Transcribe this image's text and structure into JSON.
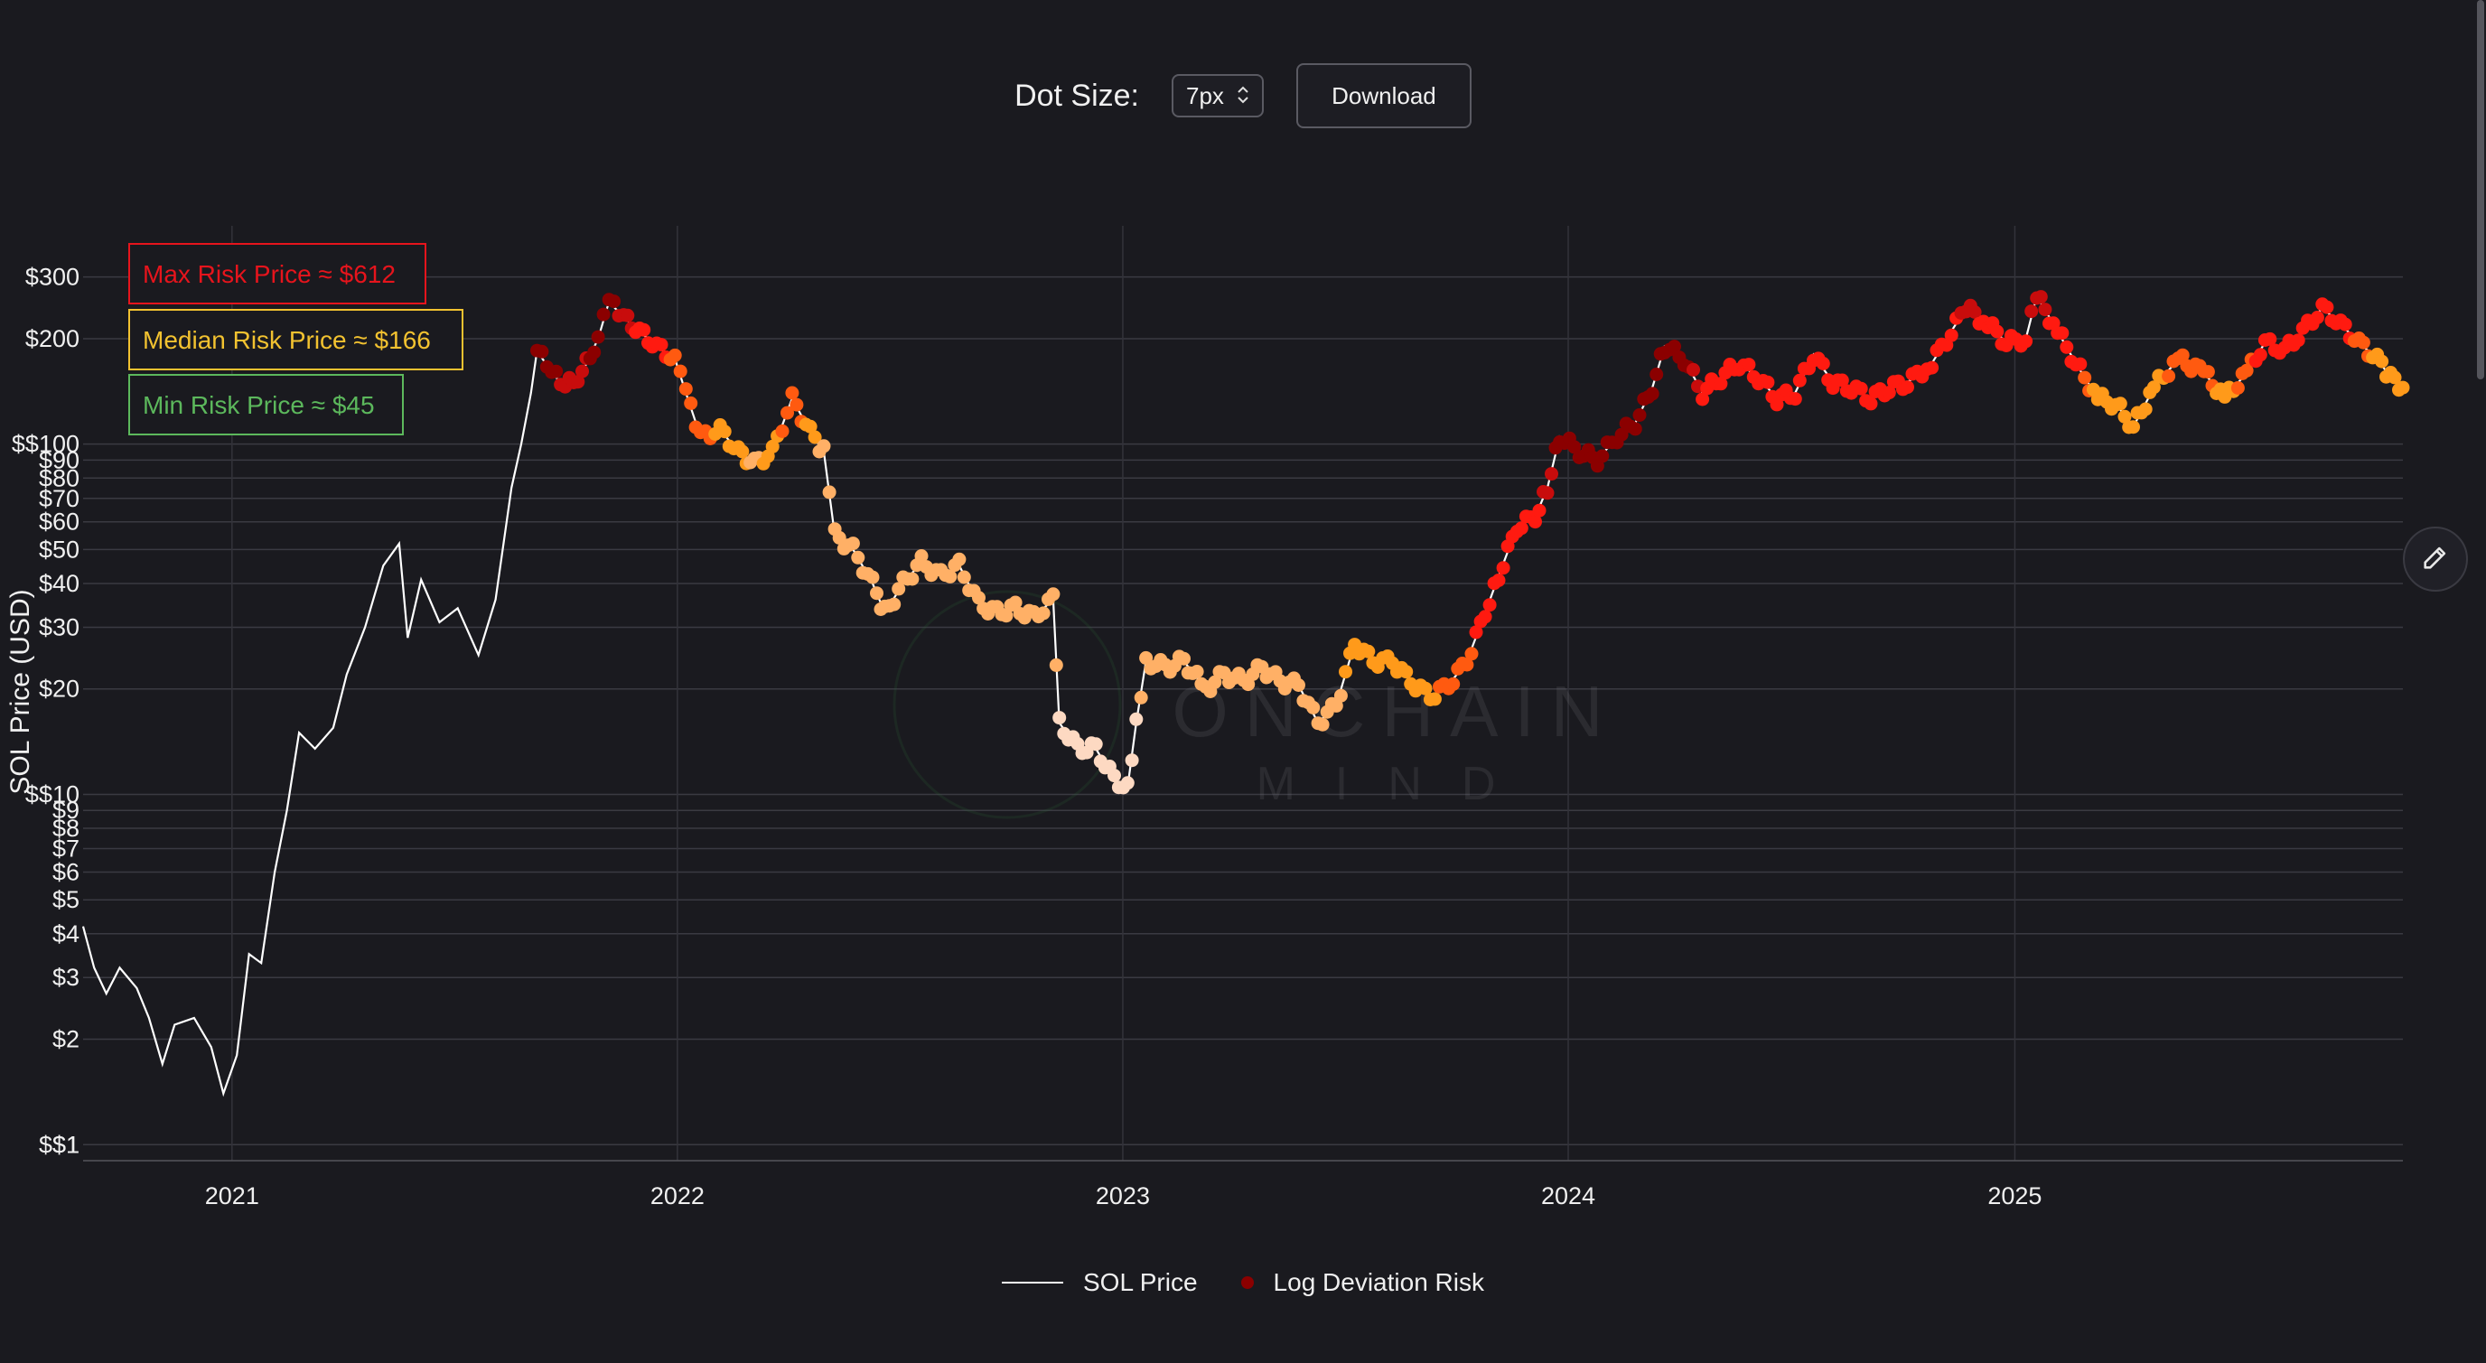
{
  "controls": {
    "dot_size_label": "Dot Size:",
    "dot_size_value": "7px",
    "download_label": "Download"
  },
  "icons": {
    "select": "chevron-updown-icon",
    "edit": "pencil-icon"
  },
  "colors": {
    "background": "#1a1a1f",
    "price_line": "#ffffff",
    "max_risk": "#e6141c",
    "median_risk": "#f2c230",
    "min_risk": "#5cb85c",
    "risk_scale": [
      "#fdd9c2",
      "#ffb066",
      "#ff9a1a",
      "#ff5a10",
      "#ff1a10",
      "#c80c0c",
      "#8b0000"
    ]
  },
  "watermark": {
    "line1": "ONCHAIN",
    "line2": "MIND"
  },
  "chart_data": {
    "type": "scatter",
    "title": "",
    "xlabel": "",
    "ylabel": "SOL Price (USD)",
    "y_scale": "log",
    "x_range": [
      "2020-09-01",
      "2025-11-15"
    ],
    "ylim": [
      0.9,
      420
    ],
    "grid": true,
    "x_tick_labels": [
      "2021",
      "2022",
      "2023",
      "2024",
      "2025"
    ],
    "y_tick_labels": [
      "$1",
      "$$1",
      "$2",
      "$3",
      "$4",
      "$5",
      "$6",
      "$7",
      "$8",
      "$9",
      "$$10",
      "$20",
      "$30",
      "$40",
      "$50",
      "$60",
      "$70",
      "$80",
      "$90",
      "$$100",
      "$200",
      "$300"
    ],
    "annotations": [
      {
        "text": "Max Risk Price ≈ $612",
        "color": "#e6141c"
      },
      {
        "text": "Median Risk Price ≈ $166",
        "color": "#f2c230"
      },
      {
        "text": "Min Risk Price ≈ $45",
        "color": "#5cb85c"
      }
    ],
    "legend": {
      "position": "bottom-center",
      "entries": [
        {
          "label": "SOL Price",
          "style": "line"
        },
        {
          "label": "Log Deviation Risk",
          "style": "dot"
        }
      ]
    },
    "series": [
      {
        "name": "SOL Price",
        "style": "line",
        "points": [
          [
            "2020-09-01",
            4.2
          ],
          [
            "2020-09-10",
            3.2
          ],
          [
            "2020-09-20",
            2.7
          ],
          [
            "2020-10-01",
            3.2
          ],
          [
            "2020-10-15",
            2.8
          ],
          [
            "2020-10-25",
            2.3
          ],
          [
            "2020-11-05",
            1.7
          ],
          [
            "2020-11-15",
            2.2
          ],
          [
            "2020-12-01",
            2.3
          ],
          [
            "2020-12-15",
            1.9
          ],
          [
            "2020-12-25",
            1.4
          ],
          [
            "2021-01-05",
            1.8
          ],
          [
            "2021-01-15",
            3.5
          ],
          [
            "2021-01-25",
            3.3
          ],
          [
            "2021-02-05",
            6.0
          ],
          [
            "2021-02-15",
            9.0
          ],
          [
            "2021-02-25",
            15.0
          ],
          [
            "2021-03-10",
            13.5
          ],
          [
            "2021-03-25",
            15.5
          ],
          [
            "2021-04-05",
            22.0
          ],
          [
            "2021-04-20",
            30.0
          ],
          [
            "2021-05-05",
            45.0
          ],
          [
            "2021-05-18",
            52.0
          ],
          [
            "2021-05-25",
            28.0
          ],
          [
            "2021-06-05",
            41.0
          ],
          [
            "2021-06-20",
            31.0
          ],
          [
            "2021-07-05",
            34.0
          ],
          [
            "2021-07-22",
            25.0
          ],
          [
            "2021-08-05",
            36.0
          ],
          [
            "2021-08-18",
            75.0
          ],
          [
            "2021-08-26",
            100.0
          ],
          [
            "2021-09-03",
            140.0
          ],
          [
            "2021-09-08",
            185.0
          ]
        ]
      },
      {
        "name": "Log Deviation Risk",
        "style": "dots",
        "points": [
          [
            "2021-09-08",
            185,
            6
          ],
          [
            "2021-09-20",
            160,
            6
          ],
          [
            "2021-10-01",
            145,
            5
          ],
          [
            "2021-10-15",
            160,
            5
          ],
          [
            "2021-10-28",
            200,
            6
          ],
          [
            "2021-11-06",
            255,
            6
          ],
          [
            "2021-11-18",
            230,
            5
          ],
          [
            "2021-12-01",
            210,
            4
          ],
          [
            "2021-12-15",
            190,
            4
          ],
          [
            "2021-12-30",
            175,
            3
          ],
          [
            "2022-01-08",
            140,
            3
          ],
          [
            "2022-01-20",
            105,
            3
          ],
          [
            "2022-02-05",
            110,
            2
          ],
          [
            "2022-02-20",
            95,
            2
          ],
          [
            "2022-03-05",
            88,
            1
          ],
          [
            "2022-03-20",
            95,
            2
          ],
          [
            "2022-04-05",
            135,
            3
          ],
          [
            "2022-04-20",
            108,
            2
          ],
          [
            "2022-05-01",
            95,
            1
          ],
          [
            "2022-05-10",
            55,
            1
          ],
          [
            "2022-05-25",
            50,
            1
          ],
          [
            "2022-06-10",
            40,
            1
          ],
          [
            "2022-06-20",
            33,
            1
          ],
          [
            "2022-07-05",
            40,
            1
          ],
          [
            "2022-07-20",
            46,
            1
          ],
          [
            "2022-08-05",
            42,
            1
          ],
          [
            "2022-08-20",
            45,
            1
          ],
          [
            "2022-09-05",
            35,
            1
          ],
          [
            "2022-09-20",
            33,
            1
          ],
          [
            "2022-10-05",
            34,
            1
          ],
          [
            "2022-10-20",
            32,
            1
          ],
          [
            "2022-11-05",
            36,
            1
          ],
          [
            "2022-11-10",
            16,
            0
          ],
          [
            "2022-11-25",
            13.5,
            0
          ],
          [
            "2022-12-10",
            13.5,
            0
          ],
          [
            "2022-12-25",
            11,
            0
          ],
          [
            "2023-01-05",
            10.5,
            0
          ],
          [
            "2023-01-12",
            16,
            0
          ],
          [
            "2023-01-20",
            24,
            1
          ],
          [
            "2023-02-05",
            23,
            1
          ],
          [
            "2023-02-20",
            24,
            1
          ],
          [
            "2023-03-10",
            20,
            1
          ],
          [
            "2023-03-25",
            22,
            1
          ],
          [
            "2023-04-10",
            21,
            1
          ],
          [
            "2023-04-25",
            23,
            1
          ],
          [
            "2023-05-10",
            21,
            1
          ],
          [
            "2023-05-25",
            20.5,
            1
          ],
          [
            "2023-06-10",
            16,
            1
          ],
          [
            "2023-06-25",
            18,
            1
          ],
          [
            "2023-07-10",
            27,
            2
          ],
          [
            "2023-07-25",
            24,
            2
          ],
          [
            "2023-08-10",
            24,
            2
          ],
          [
            "2023-08-25",
            21,
            2
          ],
          [
            "2023-09-10",
            19,
            2
          ],
          [
            "2023-09-25",
            20.5,
            3
          ],
          [
            "2023-10-10",
            24,
            3
          ],
          [
            "2023-10-25",
            33,
            4
          ],
          [
            "2023-11-05",
            42,
            4
          ],
          [
            "2023-11-20",
            58,
            4
          ],
          [
            "2023-12-05",
            62,
            4
          ],
          [
            "2023-12-15",
            75,
            5
          ],
          [
            "2023-12-25",
            105,
            6
          ],
          [
            "2024-01-10",
            95,
            6
          ],
          [
            "2024-01-25",
            90,
            6
          ],
          [
            "2024-02-10",
            105,
            6
          ],
          [
            "2024-02-25",
            115,
            6
          ],
          [
            "2024-03-10",
            145,
            6
          ],
          [
            "2024-03-20",
            190,
            6
          ],
          [
            "2024-04-05",
            175,
            6
          ],
          [
            "2024-04-20",
            140,
            4
          ],
          [
            "2024-05-05",
            155,
            4
          ],
          [
            "2024-05-20",
            170,
            4
          ],
          [
            "2024-06-05",
            155,
            4
          ],
          [
            "2024-06-20",
            135,
            4
          ],
          [
            "2024-07-05",
            140,
            4
          ],
          [
            "2024-07-20",
            180,
            4
          ],
          [
            "2024-08-05",
            150,
            4
          ],
          [
            "2024-08-20",
            145,
            4
          ],
          [
            "2024-09-05",
            135,
            4
          ],
          [
            "2024-09-20",
            145,
            4
          ],
          [
            "2024-10-05",
            150,
            4
          ],
          [
            "2024-10-25",
            170,
            4
          ],
          [
            "2024-11-10",
            210,
            4
          ],
          [
            "2024-11-22",
            245,
            5
          ],
          [
            "2024-12-10",
            220,
            4
          ],
          [
            "2024-12-25",
            195,
            4
          ],
          [
            "2025-01-10",
            200,
            4
          ],
          [
            "2025-01-19",
            265,
            5
          ],
          [
            "2025-02-05",
            210,
            4
          ],
          [
            "2025-02-20",
            170,
            4
          ],
          [
            "2025-03-10",
            135,
            2
          ],
          [
            "2025-03-25",
            130,
            2
          ],
          [
            "2025-04-08",
            112,
            2
          ],
          [
            "2025-04-25",
            145,
            2
          ],
          [
            "2025-05-15",
            175,
            3
          ],
          [
            "2025-06-05",
            160,
            3
          ],
          [
            "2025-06-22",
            135,
            2
          ],
          [
            "2025-07-10",
            160,
            3
          ],
          [
            "2025-07-25",
            195,
            4
          ],
          [
            "2025-08-10",
            185,
            4
          ],
          [
            "2025-08-25",
            210,
            4
          ],
          [
            "2025-09-10",
            245,
            4
          ],
          [
            "2025-09-25",
            220,
            4
          ],
          [
            "2025-10-10",
            195,
            3
          ],
          [
            "2025-10-25",
            175,
            2
          ],
          [
            "2025-11-05",
            155,
            2
          ],
          [
            "2025-11-15",
            145,
            2
          ]
        ]
      }
    ]
  }
}
